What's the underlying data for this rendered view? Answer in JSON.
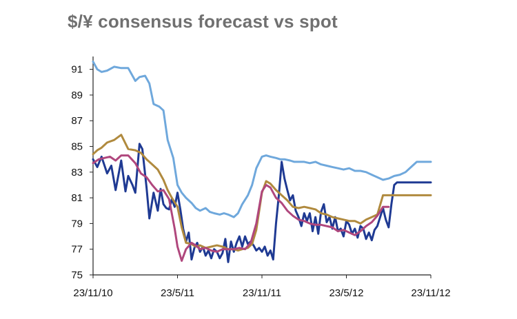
{
  "chart_data": {
    "type": "line",
    "title": "$/¥ consensus forecast vs spot",
    "xlabel": "",
    "ylabel": "",
    "ylim": [
      75,
      92
    ],
    "y_ticks": [
      "91",
      "89",
      "87",
      "85",
      "83",
      "81",
      "79",
      "77",
      "75"
    ],
    "x_tick_labels": [
      "23/11/10",
      "23/5/11",
      "23/11/11",
      "23/5/12",
      "23/11/12"
    ],
    "x_range_months": [
      0,
      24
    ],
    "grid": false,
    "legend": "none",
    "series": [
      {
        "color": "#1f3a93",
        "x": [
          0,
          0.3,
          0.6,
          1,
          1.3,
          1.6,
          2,
          2.3,
          2.5,
          2.8,
          3,
          3.3,
          3.5,
          3.8,
          4,
          4.3,
          4.6,
          4.8,
          5,
          5.2,
          5.4,
          5.6,
          5.8,
          6,
          6.2,
          6.4,
          6.6,
          6.8,
          7,
          7.2,
          7.4,
          7.6,
          7.8,
          8,
          8.2,
          8.4,
          8.6,
          8.8,
          9,
          9.2,
          9.4,
          9.6,
          9.8,
          10,
          10.2,
          10.4,
          10.6,
          10.8,
          11,
          11.2,
          11.4,
          11.6,
          11.8,
          12,
          12.2,
          12.4,
          12.6,
          12.8,
          13,
          13.2,
          13.4,
          13.6,
          13.8,
          14,
          14.2,
          14.4,
          14.6,
          14.8,
          15,
          15.2,
          15.4,
          15.6,
          15.8,
          16,
          16.2,
          16.4,
          16.6,
          16.8,
          17,
          17.2,
          17.4,
          17.6,
          17.8,
          18,
          18.2,
          18.4,
          18.6,
          18.8,
          19,
          19.2,
          19.4,
          19.6,
          19.8,
          20,
          20.2,
          20.4,
          20.6,
          20.8,
          21,
          21.2,
          21.4,
          21.6,
          21.8,
          22,
          22.2,
          22.4,
          22.6,
          22.8,
          23,
          23.2,
          23.4,
          23.6,
          23.8,
          24
        ],
        "values": [
          84.0,
          83.4,
          84.2,
          82.9,
          83.5,
          81.6,
          83.9,
          81.5,
          82.7,
          82.0,
          81.4,
          85.2,
          84.8,
          81.8,
          79.4,
          81.4,
          80.0,
          81.7,
          80.5,
          80.2,
          80.1,
          80.9,
          80.3,
          81.4,
          80.1,
          78.6,
          77.6,
          78.3,
          76.2,
          77.1,
          77.5,
          76.8,
          77.2,
          76.5,
          76.9,
          76.3,
          77.0,
          76.8,
          76.3,
          76.7,
          77.8,
          76.0,
          77.6,
          76.8,
          77.5,
          78.0,
          77.2,
          78.0,
          77.4,
          77.6,
          77.3,
          76.9,
          77.1,
          76.8,
          77.2,
          76.5,
          76.9,
          76.2,
          79.0,
          81.2,
          83.8,
          82.5,
          81.6,
          80.8,
          81.2,
          80.0,
          79.5,
          78.8,
          79.8,
          79.2,
          79.8,
          78.4,
          79.5,
          78.2,
          79.9,
          80.5,
          79.1,
          79.5,
          78.6,
          79.5,
          78.4,
          78.6,
          78.0,
          79.2,
          78.9,
          78.2,
          78.6,
          77.9,
          78.8,
          78.6,
          77.8,
          78.3,
          77.7,
          78.5,
          78.8,
          79.5,
          80.2,
          79.3,
          78.7,
          80.5,
          82.0,
          82.2,
          82.2,
          82.2,
          82.2,
          82.2,
          82.2,
          82.2,
          82.2,
          82.2,
          82.2,
          82.2,
          82.2,
          82.2
        ]
      },
      {
        "color": "#6fa8dc",
        "x": [
          0,
          0.3,
          0.6,
          1,
          1.5,
          2,
          2.5,
          3,
          3.3,
          3.7,
          4,
          4.3,
          4.7,
          5,
          5.3,
          5.7,
          6,
          6.3,
          6.6,
          7,
          7.3,
          7.6,
          8,
          8.3,
          8.6,
          9,
          9.3,
          9.6,
          10,
          10.3,
          10.6,
          11,
          11.3,
          11.6,
          12,
          12.3,
          12.6,
          13,
          13.3,
          13.6,
          14,
          14.3,
          14.6,
          15,
          15.4,
          15.8,
          16.2,
          16.6,
          17,
          17.4,
          17.8,
          18.2,
          18.6,
          19,
          19.4,
          19.8,
          20.2,
          20.6,
          21,
          21.4,
          21.8,
          22.2,
          22.6,
          23,
          23.4,
          23.8,
          24
        ],
        "values": [
          91.6,
          91.0,
          90.8,
          90.9,
          91.2,
          91.1,
          91.1,
          90.1,
          90.4,
          90.5,
          89.9,
          88.3,
          88.1,
          87.8,
          85.5,
          84.1,
          82.0,
          81.4,
          81.0,
          80.6,
          80.2,
          80.0,
          80.2,
          79.9,
          79.8,
          79.7,
          79.8,
          79.7,
          79.5,
          79.8,
          80.5,
          81.2,
          82.0,
          83.3,
          84.2,
          84.3,
          84.2,
          84.1,
          84.0,
          84.0,
          83.9,
          83.8,
          83.8,
          83.8,
          83.7,
          83.8,
          83.6,
          83.5,
          83.4,
          83.3,
          83.2,
          83.3,
          83.1,
          83.1,
          83.0,
          82.8,
          82.6,
          82.4,
          82.5,
          82.7,
          82.8,
          83.0,
          83.4,
          83.8,
          83.8,
          83.8,
          83.8
        ]
      },
      {
        "color": "#b08a3e",
        "x": [
          0,
          0.3,
          0.6,
          1,
          1.5,
          2,
          2.5,
          3,
          3.4,
          3.8,
          4.2,
          4.6,
          5,
          5.3,
          5.6,
          6,
          6.3,
          6.6,
          7,
          7.3,
          7.6,
          8,
          8.4,
          8.8,
          9.2,
          9.6,
          10,
          10.3,
          10.6,
          11,
          11.3,
          11.6,
          12,
          12.3,
          12.6,
          13,
          13.4,
          13.8,
          14.2,
          14.6,
          15,
          15.4,
          15.8,
          16.2,
          16.6,
          17,
          17.4,
          17.8,
          18.2,
          18.6,
          19,
          19.4,
          19.8,
          20.2,
          20.6,
          21,
          21.4,
          21.8,
          22.2,
          22.6,
          23,
          23.4,
          23.8,
          24
        ],
        "values": [
          84.4,
          84.7,
          84.9,
          85.3,
          85.5,
          85.9,
          84.8,
          84.7,
          84.5,
          84.0,
          83.6,
          83.2,
          82.4,
          81.6,
          81.0,
          80.3,
          78.7,
          77.5,
          77.4,
          77.2,
          77.3,
          77.1,
          77.2,
          77.3,
          77.2,
          77.0,
          77.0,
          76.9,
          77.0,
          77.1,
          77.4,
          78.5,
          81.4,
          82.3,
          82.1,
          81.6,
          81.2,
          80.8,
          80.3,
          80.2,
          80.3,
          80.2,
          80.1,
          79.8,
          79.7,
          79.5,
          79.4,
          79.3,
          79.2,
          79.2,
          79.0,
          79.3,
          79.5,
          79.7,
          81.2,
          81.2,
          81.2,
          81.2,
          81.2,
          81.2,
          81.2,
          81.2,
          81.2,
          81.2
        ]
      },
      {
        "color": "#b0477d",
        "x": [
          0,
          0.4,
          0.8,
          1.2,
          1.6,
          2,
          2.5,
          3,
          3.4,
          3.8,
          4.2,
          4.6,
          5,
          5.4,
          5.8,
          6,
          6.3,
          6.6,
          7,
          7.3,
          7.6,
          8,
          8.4,
          8.8,
          9.2,
          9.6,
          10,
          10.4,
          10.8,
          11.2,
          11.6,
          12,
          12.3,
          12.6,
          13,
          13.4,
          13.8,
          14.2,
          14.6,
          15,
          15.4,
          15.8,
          16.2,
          16.6,
          17,
          17.4,
          17.8,
          18.2,
          18.6,
          19,
          19.4,
          19.8,
          20.2,
          20.6,
          21
        ],
        "values": [
          83.7,
          84.0,
          84.1,
          84.2,
          83.9,
          84.3,
          84.3,
          83.7,
          82.9,
          82.6,
          82.0,
          81.5,
          81.6,
          80.9,
          78.6,
          77.2,
          76.1,
          77.0,
          77.5,
          77.3,
          77.0,
          77.1,
          76.9,
          76.8,
          77.0,
          77.0,
          77.0,
          77.1,
          77.0,
          77.5,
          79.0,
          81.5,
          82.0,
          81.8,
          81.0,
          80.6,
          80.0,
          79.6,
          79.3,
          79.2,
          79.0,
          78.9,
          78.9,
          78.8,
          78.7,
          78.4,
          78.5,
          78.3,
          78.1,
          78.4,
          78.8,
          79.1,
          79.6,
          80.3,
          80.3
        ]
      }
    ]
  }
}
